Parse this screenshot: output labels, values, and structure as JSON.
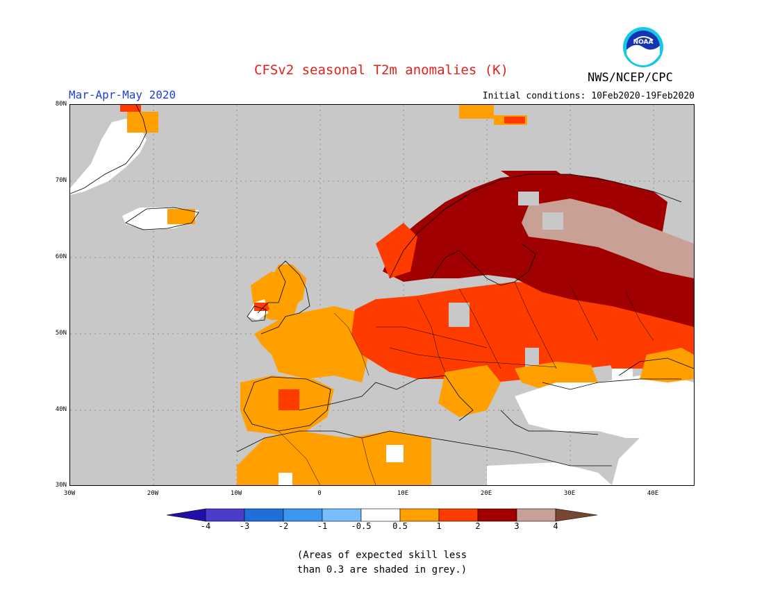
{
  "header": {
    "title": "CFSv2 seasonal T2m anomalies (K)",
    "season": "Mar-Apr-May 2020",
    "initial_conditions": "Initial conditions: 10Feb2020-19Feb2020",
    "agency": "NWS/NCEP/CPC",
    "logo_text": "NOAA"
  },
  "map": {
    "lat_labels": [
      "80N",
      "70N",
      "60N",
      "50N",
      "40N",
      "30N"
    ],
    "lon_labels": [
      "30W",
      "20W",
      "10W",
      "0",
      "10E",
      "20E",
      "30E",
      "40E"
    ],
    "colors": {
      "grey_low_skill": "#c8c8c8",
      "neutral": "#ffffff",
      "warm_0_5_1": "#ffa000",
      "warm_1_2": "#ff3c00",
      "warm_2_3": "#a00000",
      "warm_3_4": "#c8a096"
    }
  },
  "colorbar": {
    "labels": [
      "-4",
      "-3",
      "-2",
      "-1",
      "-0.5",
      "0.5",
      "1",
      "2",
      "3",
      "4"
    ],
    "colors": [
      "#2010a8",
      "#4c3ccc",
      "#1e6edc",
      "#3c96f0",
      "#78beff",
      "#ffffff",
      "#ffa000",
      "#ff3c00",
      "#a00000",
      "#c8a096",
      "#784632"
    ]
  },
  "note": {
    "line1": "(Areas of expected skill less",
    "line2": "than 0.3 are shaded in grey.)"
  }
}
